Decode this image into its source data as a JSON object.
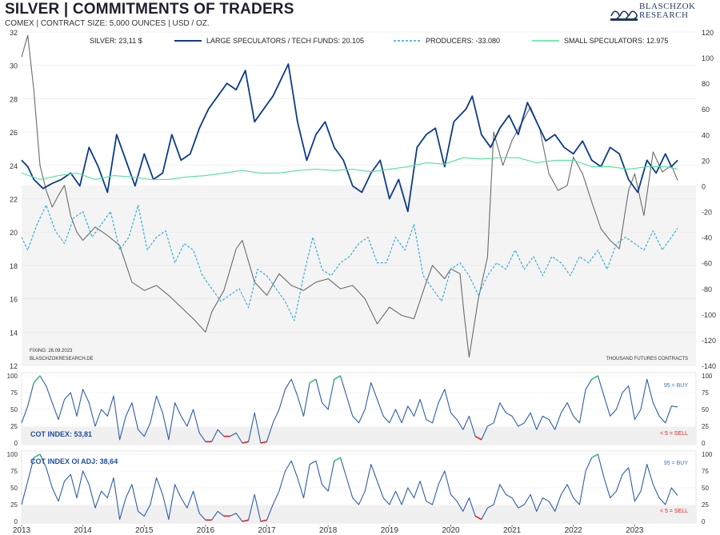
{
  "header": {
    "title": "SILVER | COMMITMENTS OF TRADERS",
    "subtitle": "COMEX | CONTRACT SIZE: 5,000 OUNCES | USD / OZ.",
    "logo_line1": "BLASCHZOK",
    "logo_line2": "RESEARCH"
  },
  "colors": {
    "silver": "#6b6b6b",
    "large_speculators": "#0d3b8c",
    "producers": "#22a8dc",
    "small_speculators": "#4fe39a",
    "cot_line": "#2f5eae",
    "buy_zone": "#2ecc71",
    "sell_zone": "#e02020"
  },
  "chart_data": [
    {
      "type": "line",
      "title": "SILVER | COMMITMENTS OF TRADERS",
      "legend": {
        "silver": "SILVER: 23,11 $",
        "large_speculators": "LARGE SPECULATORS / TECH FUNDS: 20.105",
        "producers": "PRODUCERS: -33.080",
        "small_speculators": "SMALL SPECULATORS: 12.975"
      },
      "left_axis": {
        "min": 12,
        "max": 32,
        "ticks": [
          "32",
          "30",
          "28",
          "26",
          "24",
          "22",
          "20",
          "18",
          "16",
          "14",
          "12"
        ]
      },
      "right_axis": {
        "min": -140,
        "max": 120,
        "unit": "THOUSAND FUTURES CONTRACTS",
        "ticks": [
          "120",
          "100",
          "80",
          "60",
          "40",
          "20",
          "0",
          "-20",
          "-40",
          "-60",
          "-80",
          "-100",
          "-120",
          "-140"
        ]
      },
      "x_labels": [
        "2013",
        "2014",
        "2015",
        "2016",
        "2017",
        "2018",
        "2019",
        "2020",
        "2021",
        "2022",
        "2023"
      ],
      "fixing_note": "FIXING: 26.09.2023",
      "source_note": "BLASCHZOKRESEARCH.DE",
      "unit_note": "THOUSAND  FUTURES  CONTRACTS",
      "series": [
        {
          "name": "Silver",
          "axis": "left",
          "x": [
            2013.0,
            2013.1,
            2013.2,
            2013.3,
            2013.4,
            2013.5,
            2013.6,
            2013.7,
            2013.8,
            2013.9,
            2014.0,
            2014.2,
            2014.4,
            2014.6,
            2014.8,
            2015.0,
            2015.2,
            2015.4,
            2015.6,
            2015.8,
            2016.0,
            2016.1,
            2016.3,
            2016.5,
            2016.6,
            2016.8,
            2017.0,
            2017.2,
            2017.4,
            2017.6,
            2017.8,
            2018.0,
            2018.2,
            2018.4,
            2018.6,
            2018.8,
            2019.0,
            2019.2,
            2019.4,
            2019.6,
            2019.7,
            2019.9,
            2020.0,
            2020.15,
            2020.22,
            2020.3,
            2020.45,
            2020.6,
            2020.7,
            2020.85,
            2021.0,
            2021.15,
            2021.3,
            2021.45,
            2021.6,
            2021.75,
            2021.9,
            2022.0,
            2022.15,
            2022.3,
            2022.45,
            2022.6,
            2022.75,
            2022.9,
            2023.0,
            2023.15,
            2023.3,
            2023.45,
            2023.6,
            2023.7
          ],
          "values": [
            30.5,
            31.8,
            28.5,
            24.0,
            22.5,
            21.5,
            22.2,
            22.8,
            21.0,
            20.0,
            19.5,
            20.3,
            19.8,
            19.2,
            17.0,
            16.5,
            16.8,
            16.2,
            15.5,
            14.8,
            14.0,
            15.2,
            16.5,
            19.0,
            19.5,
            17.0,
            16.2,
            17.5,
            16.8,
            16.5,
            17.0,
            17.2,
            16.6,
            16.8,
            16.0,
            14.5,
            15.5,
            15.0,
            14.8,
            17.0,
            18.0,
            17.2,
            17.8,
            17.5,
            15.0,
            12.5,
            16.0,
            18.5,
            26.0,
            24.0,
            25.5,
            26.5,
            27.5,
            26.2,
            23.5,
            22.5,
            22.8,
            24.5,
            23.5,
            21.8,
            20.2,
            19.5,
            19.0,
            22.5,
            23.5,
            21.0,
            24.8,
            23.6,
            24.0,
            23.1
          ]
        },
        {
          "name": "Large Speculators / Tech Funds",
          "axis": "right",
          "x": [
            2013.0,
            2013.1,
            2013.2,
            2013.35,
            2013.5,
            2013.65,
            2013.8,
            2013.95,
            2014.1,
            2014.25,
            2014.4,
            2014.55,
            2014.7,
            2014.85,
            2015.0,
            2015.15,
            2015.3,
            2015.45,
            2015.6,
            2015.75,
            2015.9,
            2016.05,
            2016.2,
            2016.35,
            2016.5,
            2016.65,
            2016.8,
            2016.95,
            2017.1,
            2017.2,
            2017.35,
            2017.5,
            2017.65,
            2017.8,
            2017.95,
            2018.1,
            2018.25,
            2018.4,
            2018.55,
            2018.7,
            2018.85,
            2019.0,
            2019.15,
            2019.3,
            2019.45,
            2019.6,
            2019.75,
            2019.9,
            2020.05,
            2020.15,
            2020.25,
            2020.35,
            2020.5,
            2020.65,
            2020.8,
            2020.95,
            2021.1,
            2021.25,
            2021.4,
            2021.55,
            2021.7,
            2021.85,
            2022.0,
            2022.15,
            2022.3,
            2022.45,
            2022.6,
            2022.75,
            2022.9,
            2023.05,
            2023.2,
            2023.35,
            2023.5,
            2023.6,
            2023.7
          ],
          "values": [
            20,
            15,
            5,
            -2,
            2,
            5,
            10,
            0,
            30,
            15,
            -5,
            40,
            20,
            0,
            25,
            5,
            10,
            40,
            20,
            25,
            45,
            60,
            70,
            80,
            75,
            90,
            50,
            60,
            70,
            80,
            95,
            50,
            20,
            40,
            50,
            30,
            20,
            0,
            -5,
            10,
            20,
            -10,
            5,
            -20,
            30,
            40,
            45,
            15,
            50,
            55,
            60,
            70,
            40,
            30,
            45,
            55,
            40,
            65,
            50,
            35,
            40,
            30,
            25,
            35,
            20,
            15,
            30,
            25,
            5,
            -5,
            20,
            10,
            25,
            15,
            20
          ]
        },
        {
          "name": "Producers",
          "axis": "right",
          "x": [
            2013.0,
            2013.1,
            2013.25,
            2013.4,
            2013.55,
            2013.7,
            2013.85,
            2014.0,
            2014.15,
            2014.3,
            2014.45,
            2014.6,
            2014.75,
            2014.9,
            2015.05,
            2015.2,
            2015.35,
            2015.5,
            2015.65,
            2015.8,
            2015.95,
            2016.1,
            2016.25,
            2016.4,
            2016.55,
            2016.7,
            2016.85,
            2017.0,
            2017.15,
            2017.3,
            2017.45,
            2017.6,
            2017.75,
            2017.9,
            2018.05,
            2018.2,
            2018.35,
            2018.5,
            2018.65,
            2018.8,
            2018.95,
            2019.1,
            2019.25,
            2019.4,
            2019.55,
            2019.7,
            2019.85,
            2020.0,
            2020.15,
            2020.3,
            2020.45,
            2020.6,
            2020.75,
            2020.9,
            2021.05,
            2021.2,
            2021.35,
            2021.5,
            2021.65,
            2021.8,
            2021.95,
            2022.1,
            2022.25,
            2022.4,
            2022.55,
            2022.7,
            2022.85,
            2023.0,
            2023.15,
            2023.3,
            2023.45,
            2023.6,
            2023.7
          ],
          "values": [
            -40,
            -50,
            -30,
            -15,
            -35,
            -45,
            -25,
            -20,
            -40,
            -30,
            -20,
            -50,
            -40,
            -15,
            -50,
            -40,
            -35,
            -60,
            -45,
            -50,
            -70,
            -80,
            -90,
            -85,
            -80,
            -95,
            -65,
            -70,
            -80,
            -90,
            -105,
            -70,
            -40,
            -65,
            -70,
            -60,
            -55,
            -45,
            -40,
            -60,
            -60,
            -40,
            -50,
            -30,
            -70,
            -80,
            -90,
            -65,
            -60,
            -70,
            -85,
            -70,
            -60,
            -65,
            -50,
            -65,
            -55,
            -70,
            -55,
            -60,
            -70,
            -55,
            -60,
            -50,
            -65,
            -45,
            -40,
            -45,
            -50,
            -35,
            -50,
            -40,
            -33
          ]
        },
        {
          "name": "Small Speculators",
          "axis": "right",
          "x": [
            2013.0,
            2013.3,
            2013.6,
            2013.9,
            2014.2,
            2014.5,
            2014.8,
            2015.1,
            2015.4,
            2015.7,
            2016.0,
            2016.3,
            2016.6,
            2016.9,
            2017.2,
            2017.5,
            2017.8,
            2018.1,
            2018.4,
            2018.7,
            2019.0,
            2019.3,
            2019.6,
            2019.9,
            2020.2,
            2020.5,
            2020.8,
            2021.1,
            2021.4,
            2021.7,
            2022.0,
            2022.3,
            2022.6,
            2022.9,
            2023.2,
            2023.5,
            2023.7
          ],
          "values": [
            10,
            5,
            8,
            10,
            5,
            8,
            7,
            5,
            5,
            7,
            8,
            10,
            12,
            10,
            10,
            12,
            13,
            12,
            13,
            11,
            13,
            15,
            18,
            17,
            22,
            21,
            22,
            22,
            18,
            20,
            20,
            15,
            15,
            13,
            15,
            15,
            13
          ]
        }
      ]
    },
    {
      "type": "line",
      "title": "COT INDEX",
      "label": "COT INDEX: 53,81",
      "ylim": [
        0,
        100
      ],
      "ticks": [
        "100",
        "75",
        "50",
        "25",
        "0"
      ],
      "buy_label": "95 = BUY",
      "sell_label": "< 5 = SELL",
      "x": [
        2013.0,
        2013.1,
        2013.2,
        2013.3,
        2013.4,
        2013.5,
        2013.6,
        2013.7,
        2013.8,
        2013.9,
        2014.0,
        2014.1,
        2014.2,
        2014.3,
        2014.4,
        2014.5,
        2014.6,
        2014.7,
        2014.8,
        2014.9,
        2015.0,
        2015.1,
        2015.2,
        2015.3,
        2015.4,
        2015.5,
        2015.6,
        2015.7,
        2015.8,
        2015.9,
        2016.0,
        2016.1,
        2016.2,
        2016.3,
        2016.4,
        2016.5,
        2016.6,
        2016.7,
        2016.8,
        2016.9,
        2017.0,
        2017.1,
        2017.2,
        2017.3,
        2017.4,
        2017.5,
        2017.6,
        2017.7,
        2017.8,
        2017.9,
        2018.0,
        2018.1,
        2018.2,
        2018.3,
        2018.4,
        2018.5,
        2018.6,
        2018.7,
        2018.8,
        2018.9,
        2019.0,
        2019.1,
        2019.2,
        2019.3,
        2019.4,
        2019.5,
        2019.6,
        2019.7,
        2019.8,
        2019.9,
        2020.0,
        2020.1,
        2020.2,
        2020.3,
        2020.4,
        2020.5,
        2020.6,
        2020.7,
        2020.8,
        2020.9,
        2021.0,
        2021.1,
        2021.2,
        2021.3,
        2021.4,
        2021.5,
        2021.6,
        2021.7,
        2021.8,
        2021.9,
        2022.0,
        2022.1,
        2022.2,
        2022.3,
        2022.4,
        2022.5,
        2022.6,
        2022.7,
        2022.8,
        2022.9,
        2023.0,
        2023.1,
        2023.2,
        2023.3,
        2023.4,
        2023.5,
        2023.6,
        2023.7
      ],
      "values": [
        30,
        55,
        90,
        100,
        85,
        60,
        35,
        65,
        75,
        40,
        80,
        60,
        25,
        50,
        40,
        70,
        5,
        40,
        60,
        20,
        10,
        30,
        70,
        45,
        5,
        60,
        40,
        25,
        50,
        15,
        2,
        2,
        20,
        10,
        10,
        15,
        0,
        2,
        45,
        0,
        2,
        30,
        50,
        80,
        95,
        70,
        40,
        90,
        95,
        60,
        50,
        95,
        100,
        70,
        40,
        30,
        50,
        90,
        65,
        40,
        30,
        50,
        30,
        55,
        40,
        65,
        35,
        30,
        60,
        80,
        45,
        35,
        20,
        40,
        10,
        5,
        25,
        30,
        60,
        45,
        40,
        25,
        30,
        45,
        20,
        40,
        35,
        20,
        45,
        60,
        40,
        30,
        80,
        95,
        100,
        70,
        40,
        50,
        75,
        85,
        35,
        50,
        95,
        60,
        40,
        30,
        55,
        53.81
      ]
    },
    {
      "type": "line",
      "title": "COT INDEX OI ADJ",
      "label": "COT INDEX OI ADJ: 38,64",
      "ylim": [
        0,
        100
      ],
      "ticks": [
        "100",
        "75",
        "50",
        "25",
        "0"
      ],
      "buy_label": "95 = BUY",
      "sell_label": "< 5 = SELL",
      "x": [
        2013.0,
        2013.1,
        2013.2,
        2013.3,
        2013.4,
        2013.5,
        2013.6,
        2013.7,
        2013.8,
        2013.9,
        2014.0,
        2014.1,
        2014.2,
        2014.3,
        2014.4,
        2014.5,
        2014.6,
        2014.7,
        2014.8,
        2014.9,
        2015.0,
        2015.1,
        2015.2,
        2015.3,
        2015.4,
        2015.5,
        2015.6,
        2015.7,
        2015.8,
        2015.9,
        2016.0,
        2016.1,
        2016.2,
        2016.3,
        2016.4,
        2016.5,
        2016.6,
        2016.7,
        2016.8,
        2016.9,
        2017.0,
        2017.1,
        2017.2,
        2017.3,
        2017.4,
        2017.5,
        2017.6,
        2017.7,
        2017.8,
        2017.9,
        2018.0,
        2018.1,
        2018.2,
        2018.3,
        2018.4,
        2018.5,
        2018.6,
        2018.7,
        2018.8,
        2018.9,
        2019.0,
        2019.1,
        2019.2,
        2019.3,
        2019.4,
        2019.5,
        2019.6,
        2019.7,
        2019.8,
        2019.9,
        2020.0,
        2020.1,
        2020.2,
        2020.3,
        2020.4,
        2020.5,
        2020.6,
        2020.7,
        2020.8,
        2020.9,
        2021.0,
        2021.1,
        2021.2,
        2021.3,
        2021.4,
        2021.5,
        2021.6,
        2021.7,
        2021.8,
        2021.9,
        2022.0,
        2022.1,
        2022.2,
        2022.3,
        2022.4,
        2022.5,
        2022.6,
        2022.7,
        2022.8,
        2022.9,
        2023.0,
        2023.1,
        2023.2,
        2023.3,
        2023.4,
        2023.5,
        2023.6,
        2023.7
      ],
      "values": [
        25,
        60,
        95,
        100,
        80,
        50,
        30,
        60,
        70,
        35,
        75,
        55,
        20,
        45,
        35,
        65,
        3,
        35,
        55,
        15,
        8,
        25,
        65,
        40,
        3,
        55,
        35,
        20,
        45,
        12,
        2,
        2,
        15,
        8,
        8,
        12,
        0,
        2,
        40,
        0,
        2,
        25,
        45,
        75,
        90,
        65,
        35,
        85,
        90,
        55,
        45,
        90,
        95,
        65,
        35,
        25,
        45,
        85,
        60,
        35,
        25,
        45,
        25,
        50,
        35,
        60,
        30,
        25,
        55,
        75,
        40,
        30,
        15,
        35,
        8,
        3,
        20,
        25,
        55,
        40,
        35,
        20,
        25,
        40,
        15,
        35,
        30,
        15,
        40,
        55,
        35,
        25,
        75,
        95,
        100,
        65,
        35,
        45,
        70,
        80,
        30,
        45,
        85,
        55,
        35,
        25,
        50,
        38.64
      ]
    }
  ]
}
